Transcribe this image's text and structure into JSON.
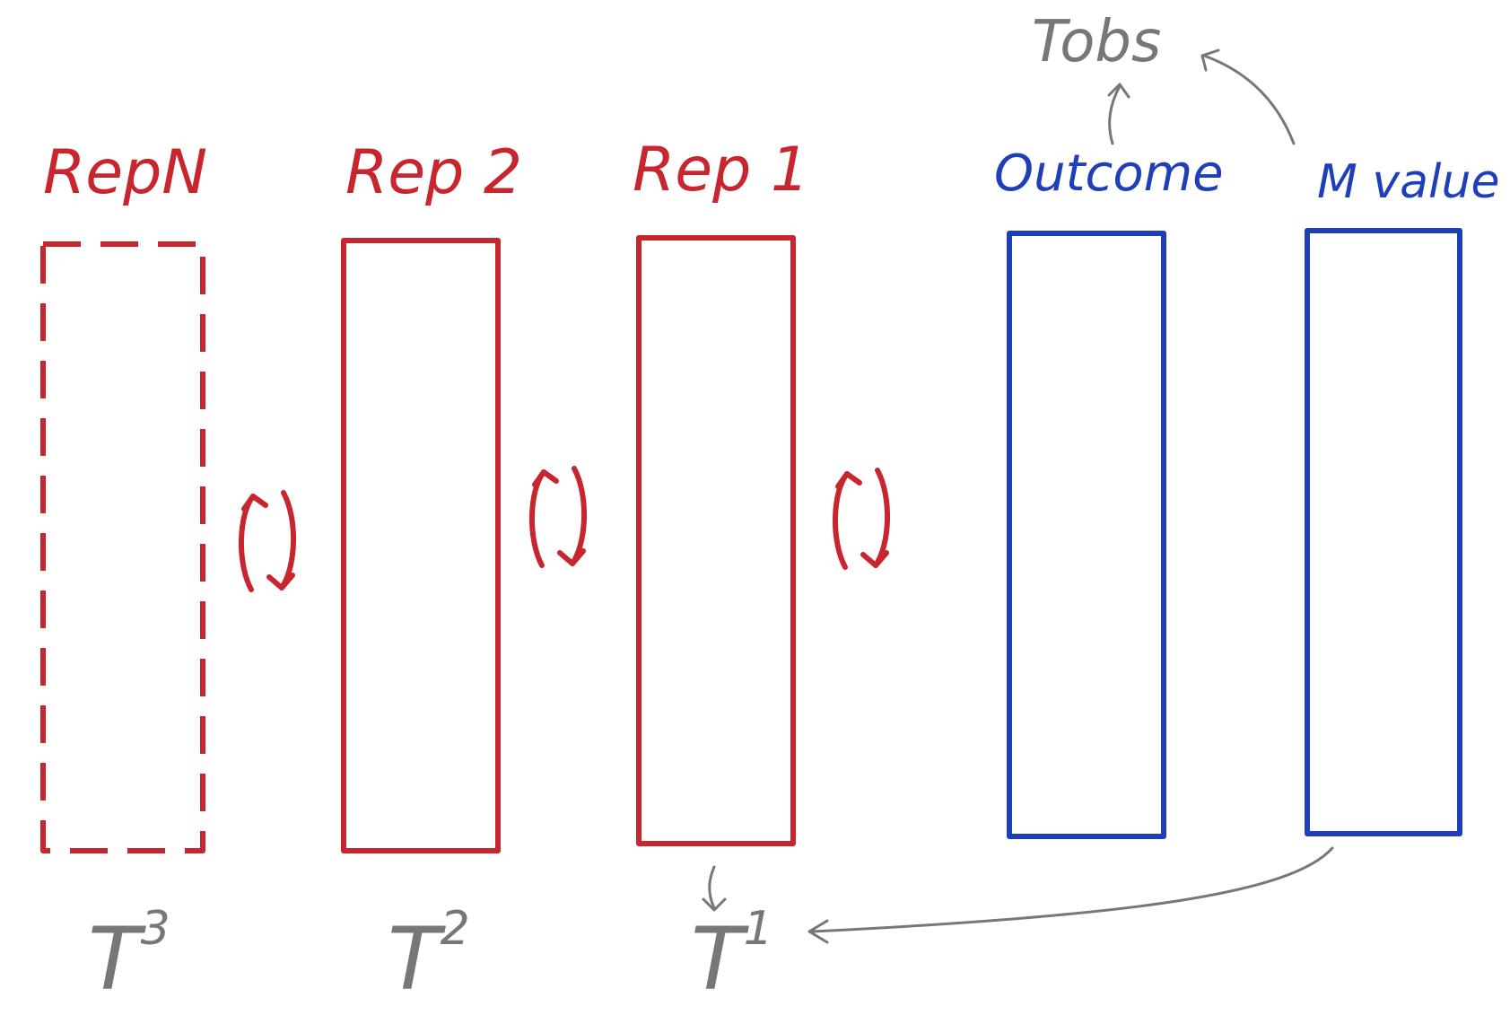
{
  "colors": {
    "replicate": "#c8262e",
    "observed": "#1f3fb8",
    "annotation": "#777777"
  },
  "columns": [
    {
      "id": "rep-n",
      "label": "RepN",
      "style": "dashed"
    },
    {
      "id": "rep-2",
      "label": "Rep 2",
      "style": "solid"
    },
    {
      "id": "rep-1",
      "label": "Rep 1",
      "style": "solid"
    },
    {
      "id": "outcome",
      "label": "Outcome",
      "style": "solid"
    },
    {
      "id": "m-value",
      "label": "M value",
      "style": "solid"
    }
  ],
  "statistics": [
    {
      "id": "t3",
      "base": "T",
      "sup": "3"
    },
    {
      "id": "t2",
      "base": "T",
      "sup": "2"
    },
    {
      "id": "t1",
      "base": "T",
      "sup": "1"
    }
  ],
  "tobs": {
    "label": "Tobs"
  },
  "swap_arrow_icons": [
    "swap-arrows-icon",
    "swap-arrows-icon",
    "swap-arrows-icon"
  ]
}
